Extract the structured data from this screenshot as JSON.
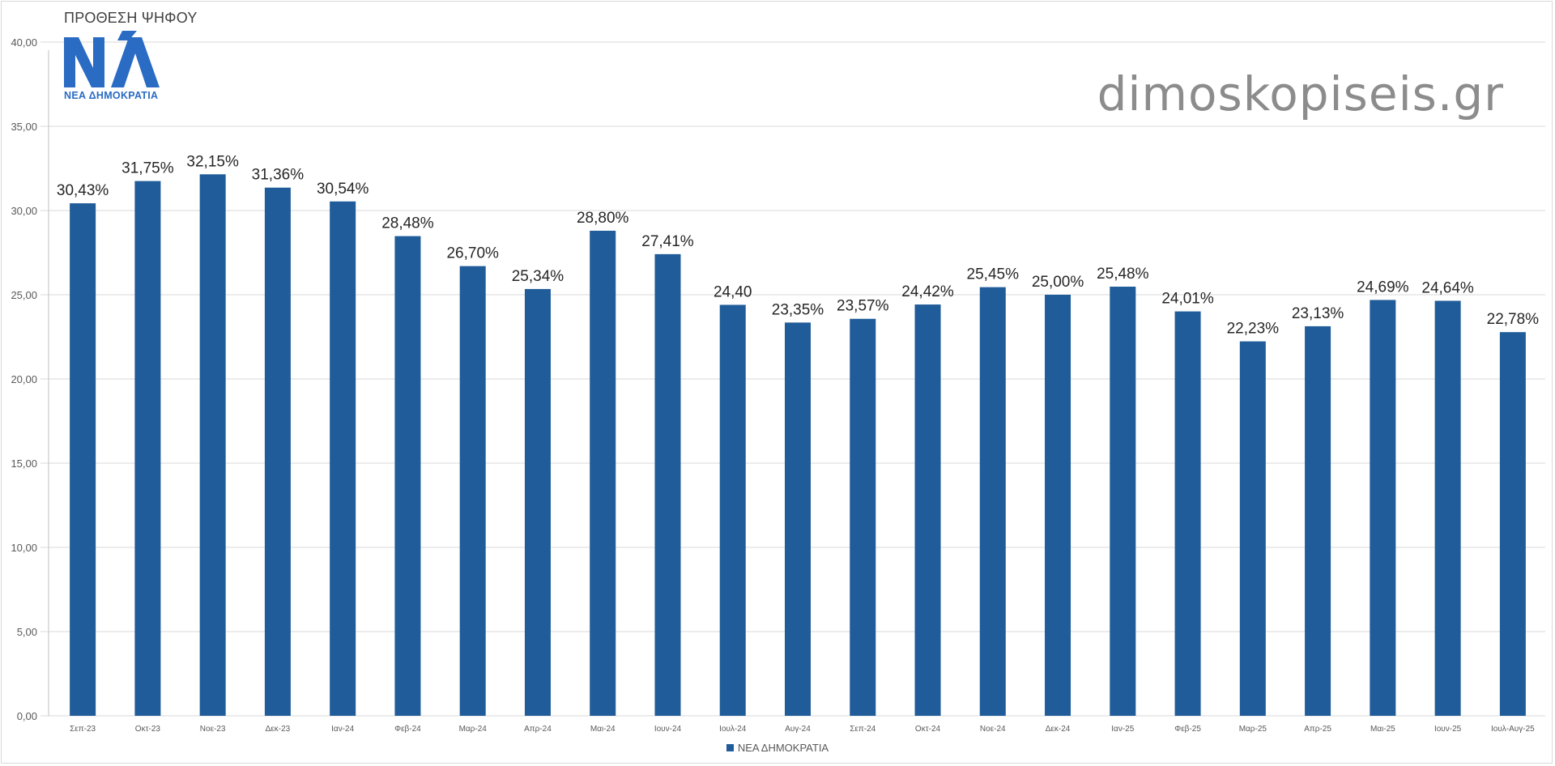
{
  "title": "ΠΡΟΘΕΣΗ ΨΗΦΟΥ",
  "watermark": "dimoskopiseis.gr",
  "logo": {
    "text": "ΝΕΑ ΔΗΜΟΚΡΑΤΙΑ",
    "color": "#2a6bc4",
    "icon": "nd-logo-icon"
  },
  "legend": {
    "label": "ΝΕΑ ΔΗΜΟΚΡΑΤΙΑ",
    "placement": "bottom-center"
  },
  "colors": {
    "bar": "#1f5c99",
    "grid": "#d9d9d9"
  },
  "chart_data": {
    "type": "bar",
    "title": "ΠΡΟΘΕΣΗ ΨΗΦΟΥ",
    "xlabel": "",
    "ylabel": "",
    "ylim": [
      0,
      40
    ],
    "yticks": [
      "0,00",
      "5,00",
      "10,00",
      "15,00",
      "20,00",
      "25,00",
      "30,00",
      "35,00",
      "40,00"
    ],
    "grid": true,
    "legend_placement": "bottom-center",
    "categories": [
      "Σεπ-23",
      "Οκτ-23",
      "Νοε-23",
      "Δεκ-23",
      "Ιαν-24",
      "Φεβ-24",
      "Μαρ-24",
      "Απρ-24",
      "Μαι-24",
      "Ιουν-24",
      "Ιουλ-24",
      "Αυγ-24",
      "Σεπ-24",
      "Οκτ-24",
      "Νοε-24",
      "Δεκ-24",
      "Ιαν-25",
      "Φεβ-25",
      "Μαρ-25",
      "Απρ-25",
      "Μαι-25",
      "Ιουν-25",
      "Ιουλ-Αυγ-25"
    ],
    "series": [
      {
        "name": "ΝΕΑ ΔΗΜΟΚΡΑΤΙΑ",
        "values": [
          30.43,
          31.75,
          32.15,
          31.36,
          30.54,
          28.48,
          26.7,
          25.34,
          28.8,
          27.41,
          24.4,
          23.35,
          23.57,
          24.42,
          25.45,
          25.0,
          25.48,
          24.01,
          22.23,
          23.13,
          24.69,
          24.64,
          22.78
        ],
        "labels": [
          "30,43%",
          "31,75%",
          "32,15%",
          "31,36%",
          "30,54%",
          "28,48%",
          "26,70%",
          "25,34%",
          "28,80%",
          "27,41%",
          "24,40",
          "23,35%",
          "23,57%",
          "24,42%",
          "25,45%",
          "25,00%",
          "25,48%",
          "24,01%",
          "22,23%",
          "23,13%",
          "24,69%",
          "24,64%",
          "22,78%"
        ]
      }
    ]
  }
}
